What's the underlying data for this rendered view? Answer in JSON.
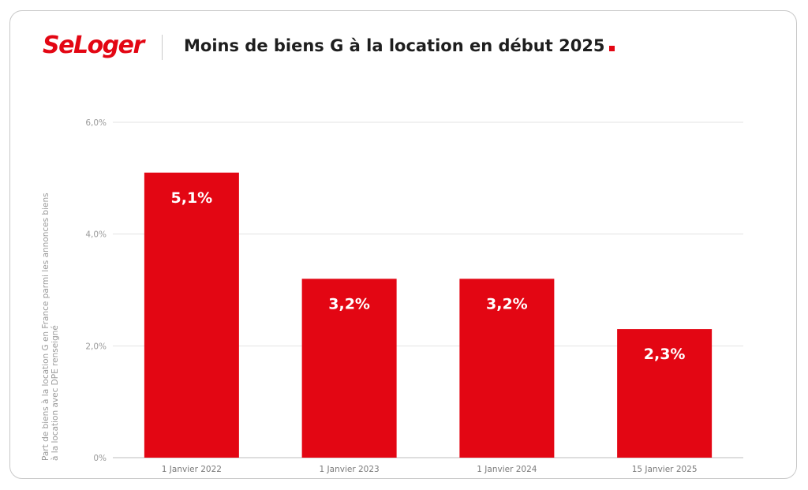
{
  "brand": {
    "logo_text": "SeLoger",
    "accent_color": "#e30613"
  },
  "chart_data": {
    "type": "bar",
    "title": "Moins de biens G à la location en début 2025",
    "ylabel": "Part de biens à la location G en France parmi les annonces biens à la location avec DPE renseigné",
    "xlabel": "",
    "categories": [
      "1 Janvier 2022",
      "1 Janvier 2023",
      "1 Janvier 2024",
      "15 Janvier 2025"
    ],
    "values": [
      5.1,
      3.2,
      3.2,
      2.3
    ],
    "data_labels": [
      "5,1%",
      "3,2%",
      "3,2%",
      "2,3%"
    ],
    "ylim": [
      0,
      6
    ],
    "yticks": [
      0,
      2,
      4,
      6
    ],
    "ytick_labels": [
      "0%",
      "2,0%",
      "4,0%",
      "6,0%"
    ],
    "grid": true,
    "legend": "none",
    "bar_color": "#e30613"
  }
}
